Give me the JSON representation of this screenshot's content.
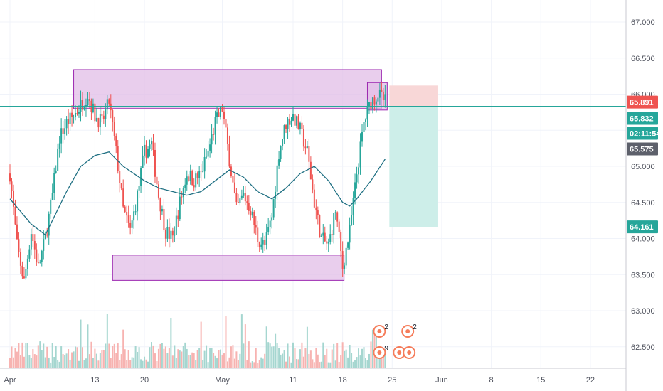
{
  "chart_data": {
    "type": "candlestick",
    "symbol_price_range": [
      62.2,
      67.2
    ],
    "y_ticks": [
      "62.500",
      "63.000",
      "63.500",
      "64.000",
      "64.500",
      "65.000",
      "65.500",
      "66.000",
      "66.500",
      "67.000"
    ],
    "x_ticks": [
      {
        "label": "Apr",
        "day": 0
      },
      {
        "label": "13",
        "day": 12
      },
      {
        "label": "20",
        "day": 19
      },
      {
        "label": "May",
        "day": 30
      },
      {
        "label": "11",
        "day": 40
      },
      {
        "label": "18",
        "day": 47
      },
      {
        "label": "25",
        "day": 54
      },
      {
        "label": "Jun",
        "day": 61
      },
      {
        "label": "8",
        "day": 68
      },
      {
        "label": "15",
        "day": 75
      },
      {
        "label": "22",
        "day": 82
      }
    ],
    "price_path": [
      [
        0,
        64.9
      ],
      [
        1,
        63.9
      ],
      [
        2,
        63.4
      ],
      [
        3,
        64.1
      ],
      [
        4,
        63.6
      ],
      [
        5,
        64.0
      ],
      [
        6,
        64.6
      ],
      [
        7,
        65.4
      ],
      [
        8,
        65.6
      ],
      [
        9,
        65.7
      ],
      [
        10,
        65.85
      ],
      [
        11,
        66.0
      ],
      [
        12,
        65.7
      ],
      [
        13,
        65.6
      ],
      [
        14,
        65.9
      ],
      [
        15,
        65.2
      ],
      [
        16,
        64.4
      ],
      [
        17,
        64.1
      ],
      [
        18,
        64.6
      ],
      [
        19,
        65.2
      ],
      [
        20,
        65.3
      ],
      [
        21,
        64.6
      ],
      [
        22,
        64.1
      ],
      [
        23,
        64.0
      ],
      [
        24,
        64.5
      ],
      [
        25,
        64.9
      ],
      [
        26,
        64.8
      ],
      [
        27,
        64.9
      ],
      [
        28,
        65.2
      ],
      [
        29,
        65.6
      ],
      [
        30,
        65.8
      ],
      [
        31,
        65.1
      ],
      [
        32,
        64.4
      ],
      [
        33,
        64.6
      ],
      [
        34,
        64.4
      ],
      [
        35,
        64.0
      ],
      [
        36,
        63.9
      ],
      [
        37,
        64.3
      ],
      [
        38,
        65.2
      ],
      [
        39,
        65.6
      ],
      [
        40,
        65.7
      ],
      [
        41,
        65.5
      ],
      [
        42,
        65.2
      ],
      [
        43,
        64.5
      ],
      [
        44,
        64.0
      ],
      [
        45,
        63.9
      ],
      [
        46,
        64.4
      ],
      [
        47,
        63.6
      ],
      [
        48,
        64.1
      ],
      [
        49,
        64.9
      ],
      [
        50,
        65.6
      ],
      [
        51,
        65.9
      ],
      [
        52,
        66.0
      ],
      [
        53,
        65.9
      ]
    ],
    "ma_path": [
      [
        0,
        64.55
      ],
      [
        3,
        64.2
      ],
      [
        5,
        64.05
      ],
      [
        8,
        64.65
      ],
      [
        10,
        65.0
      ],
      [
        12,
        65.15
      ],
      [
        14,
        65.2
      ],
      [
        16,
        65.0
      ],
      [
        19,
        64.8
      ],
      [
        21,
        64.7
      ],
      [
        23,
        64.65
      ],
      [
        25,
        64.6
      ],
      [
        27,
        64.65
      ],
      [
        29,
        64.8
      ],
      [
        31,
        64.95
      ],
      [
        33,
        64.85
      ],
      [
        35,
        64.65
      ],
      [
        37,
        64.55
      ],
      [
        39,
        64.7
      ],
      [
        41,
        64.9
      ],
      [
        43,
        65.0
      ],
      [
        45,
        64.8
      ],
      [
        47,
        64.5
      ],
      [
        48,
        64.45
      ],
      [
        49,
        64.55
      ],
      [
        51,
        64.8
      ],
      [
        53,
        65.1
      ]
    ],
    "volume_max": 1.0,
    "resistance_zone": {
      "day_start": 9,
      "day_end": 52.5,
      "price_low": 65.8,
      "price_high": 66.34
    },
    "support_zone": {
      "day_start": 14.5,
      "day_end": 47.2,
      "price_low": 63.42,
      "price_high": 63.77
    },
    "small_zone": {
      "day_start": 50.5,
      "day_end": 53.3,
      "price_low": 65.78,
      "price_high": 66.16
    },
    "short_position": {
      "day_start": 53.6,
      "day_end": 60.5,
      "entry": 65.832,
      "stop": 66.12,
      "target": 64.161
    },
    "horizontal_line": 65.832,
    "price_labels": [
      {
        "value": 65.891,
        "text": "65.891",
        "color": "#ef5350"
      },
      {
        "value": 65.832,
        "text": "65.832",
        "color": "#26a69a"
      },
      {
        "value": 65.73,
        "text": "02:11:54",
        "color": "#26a69a"
      },
      {
        "value": 65.575,
        "text": "65.575",
        "color": "#5d606b"
      },
      {
        "value": 64.161,
        "text": "64.161",
        "color": "#26a69a"
      }
    ],
    "events": [
      {
        "day": 52.2,
        "count": "2",
        "row": 1
      },
      {
        "day": 56.2,
        "count": "2",
        "row": 1
      },
      {
        "day": 52.2,
        "count": "9",
        "row": 2
      },
      {
        "day": 55.0,
        "count": "",
        "row": 2
      },
      {
        "day": 56.4,
        "count": "",
        "row": 2
      }
    ],
    "colors": {
      "up": "#26a69a",
      "down": "#ef5350",
      "ma": "#1e6f82",
      "zone_fill": "#e1bee7",
      "zone_stroke": "#9c27b0",
      "stop_fill": "#f8d7d7",
      "target_fill": "#cdeee9",
      "grid": "#f0f3fa"
    }
  }
}
